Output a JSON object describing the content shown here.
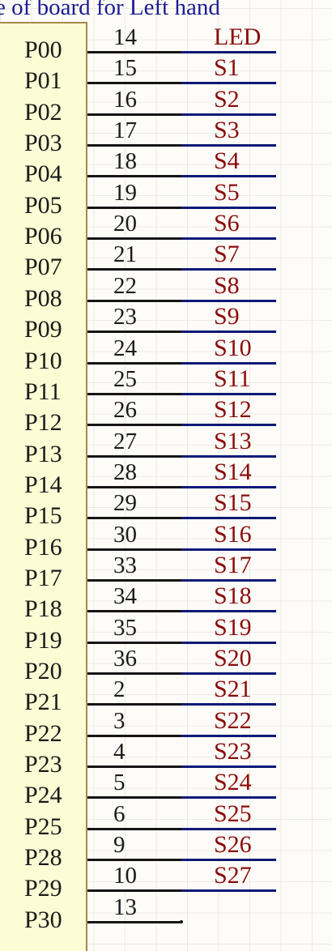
{
  "title": "le of board for Left hand",
  "colors": {
    "background": "#fdfcf8",
    "grid": "#ebeae2",
    "component_fill": "#fcfcd5",
    "component_border": "#a68a4a",
    "title_text": "#1b1b96",
    "pin_text": "#1a1a1a",
    "pin_wire": "#151515",
    "net_wire": "#0d1a78",
    "net_label_text": "#8b0b0b"
  },
  "pins": [
    {
      "label": "P00",
      "number": "14",
      "net": "LED"
    },
    {
      "label": "P01",
      "number": "15",
      "net": "S1"
    },
    {
      "label": "P02",
      "number": "16",
      "net": "S2"
    },
    {
      "label": "P03",
      "number": "17",
      "net": "S3"
    },
    {
      "label": "P04",
      "number": "18",
      "net": "S4"
    },
    {
      "label": "P05",
      "number": "19",
      "net": "S5"
    },
    {
      "label": "P06",
      "number": "20",
      "net": "S6"
    },
    {
      "label": "P07",
      "number": "21",
      "net": "S7"
    },
    {
      "label": "P08",
      "number": "22",
      "net": "S8"
    },
    {
      "label": "P09",
      "number": "23",
      "net": "S9"
    },
    {
      "label": "P10",
      "number": "24",
      "net": "S10"
    },
    {
      "label": "P11",
      "number": "25",
      "net": "S11"
    },
    {
      "label": "P12",
      "number": "26",
      "net": "S12"
    },
    {
      "label": "P13",
      "number": "27",
      "net": "S13"
    },
    {
      "label": "P14",
      "number": "28",
      "net": "S14"
    },
    {
      "label": "P15",
      "number": "29",
      "net": "S15"
    },
    {
      "label": "P16",
      "number": "30",
      "net": "S16"
    },
    {
      "label": "P17",
      "number": "33",
      "net": "S17"
    },
    {
      "label": "P18",
      "number": "34",
      "net": "S18"
    },
    {
      "label": "P19",
      "number": "35",
      "net": "S19"
    },
    {
      "label": "P20",
      "number": "36",
      "net": "S20"
    },
    {
      "label": "P21",
      "number": "2",
      "net": "S21"
    },
    {
      "label": "P22",
      "number": "3",
      "net": "S22"
    },
    {
      "label": "P23",
      "number": "4",
      "net": "S23"
    },
    {
      "label": "P24",
      "number": "5",
      "net": "S24"
    },
    {
      "label": "P25",
      "number": "6",
      "net": "S25"
    },
    {
      "label": "P28",
      "number": "9",
      "net": "S26"
    },
    {
      "label": "P29",
      "number": "10",
      "net": "S27"
    },
    {
      "label": "P30",
      "number": "13",
      "net": ""
    }
  ]
}
